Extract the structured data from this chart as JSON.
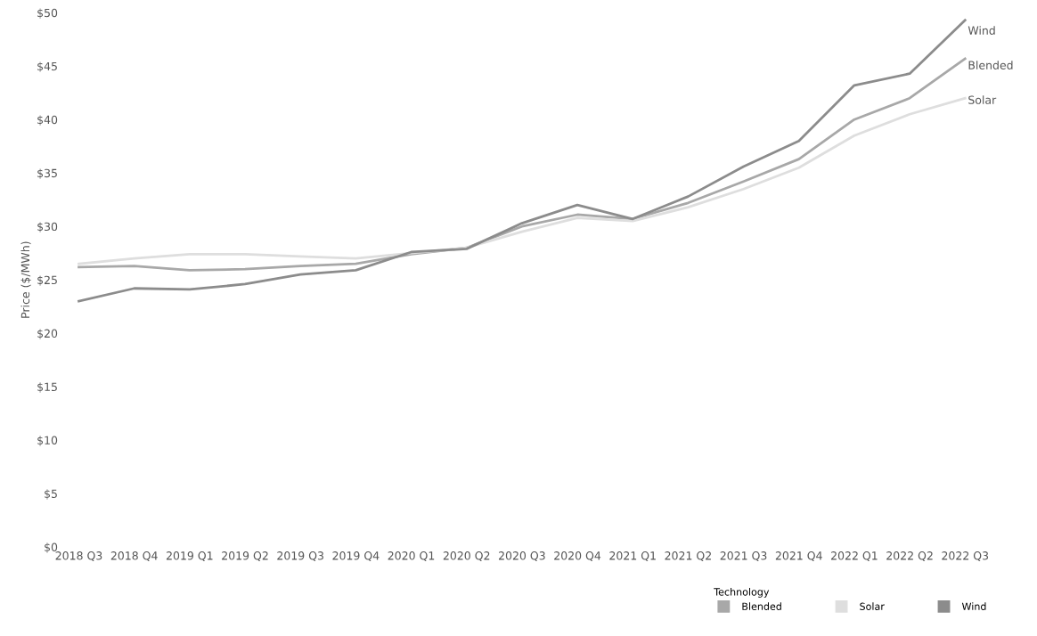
{
  "chart_data": {
    "type": "line",
    "ylabel": "Price ($/MWh)",
    "legend_title": "Technology",
    "legend": "bottom right",
    "grid": false,
    "marker": "none",
    "line_style": "solid",
    "categories": [
      "2018 Q3",
      "2018 Q4",
      "2019 Q1",
      "2019 Q2",
      "2019 Q3",
      "2019 Q4",
      "2020 Q1",
      "2020 Q2",
      "2020 Q3",
      "2020 Q4",
      "2021 Q1",
      "2021 Q2",
      "2021 Q3",
      "2021 Q4",
      "2022 Q1",
      "2022 Q2",
      "2022 Q3"
    ],
    "ylim": [
      0,
      50
    ],
    "yticks": [
      {
        "value": 0,
        "label": "$0"
      },
      {
        "value": 5,
        "label": "$5"
      },
      {
        "value": 10,
        "label": "$10"
      },
      {
        "value": 15,
        "label": "$15"
      },
      {
        "value": 20,
        "label": "$20"
      },
      {
        "value": 25,
        "label": "$25"
      },
      {
        "value": 30,
        "label": "$30"
      },
      {
        "value": 35,
        "label": "$35"
      },
      {
        "value": 40,
        "label": "$40"
      },
      {
        "value": 45,
        "label": "$45"
      },
      {
        "value": 50,
        "label": "$50"
      }
    ],
    "series": [
      {
        "name": "Blended",
        "color": "#a8a8a8",
        "values": [
          26.2,
          26.3,
          25.9,
          26.0,
          26.3,
          26.5,
          27.4,
          28.0,
          30.0,
          31.1,
          30.7,
          32.2,
          34.2,
          36.3,
          40.0,
          42.0,
          45.7
        ]
      },
      {
        "name": "Solar",
        "color": "#dedede",
        "values": [
          26.5,
          27.0,
          27.4,
          27.4,
          27.2,
          27.0,
          27.5,
          28.0,
          29.5,
          30.8,
          30.5,
          31.8,
          33.5,
          35.5,
          38.5,
          40.5,
          42.0
        ]
      },
      {
        "name": "Wind",
        "color": "#8c8c8c",
        "values": [
          23.0,
          24.2,
          24.1,
          24.6,
          25.5,
          25.9,
          27.6,
          27.9,
          30.3,
          32.0,
          30.7,
          32.8,
          35.6,
          38.0,
          43.2,
          44.3,
          49.3
        ]
      }
    ]
  }
}
